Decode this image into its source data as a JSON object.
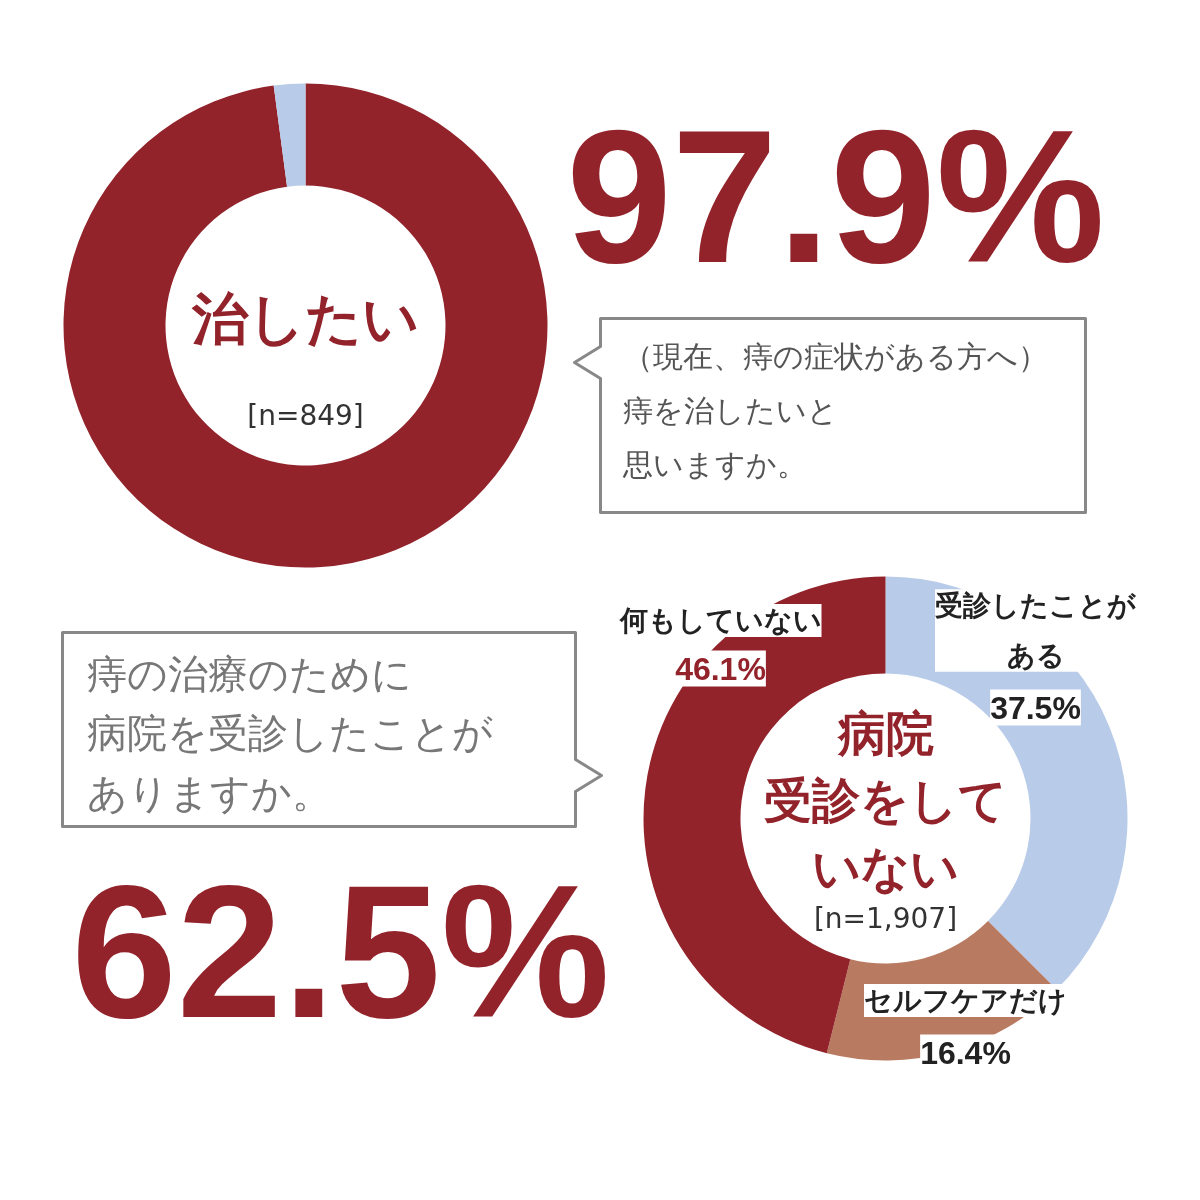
{
  "chart_data": [
    {
      "type": "donut",
      "title": "（現在、痔の症状がある方へ）痔を治したいと思いますか。",
      "categories": [
        "治したい",
        null
      ],
      "values": [
        97.9,
        2.1
      ],
      "colors": [
        "#93232b",
        "#b8cbe8"
      ],
      "value_labels": [
        "97.9%",
        null
      ],
      "annotations": [
        "[n=849]"
      ]
    },
    {
      "type": "donut",
      "title": "痔の治療のために病院を受診したことがありますか。",
      "subtitle": "病院受診をしていない",
      "categories": [
        "受診したことがある",
        "セルフケアだけ",
        "何もしていない"
      ],
      "values": [
        37.5,
        16.4,
        46.1
      ],
      "colors": [
        "#b8cbe8",
        "#b87a60",
        "#93232b"
      ],
      "value_labels": [
        "37.5%",
        "16.4%",
        "46.1%"
      ],
      "annotations": [
        "[n=1,907]",
        "62.5%"
      ]
    }
  ]
}
